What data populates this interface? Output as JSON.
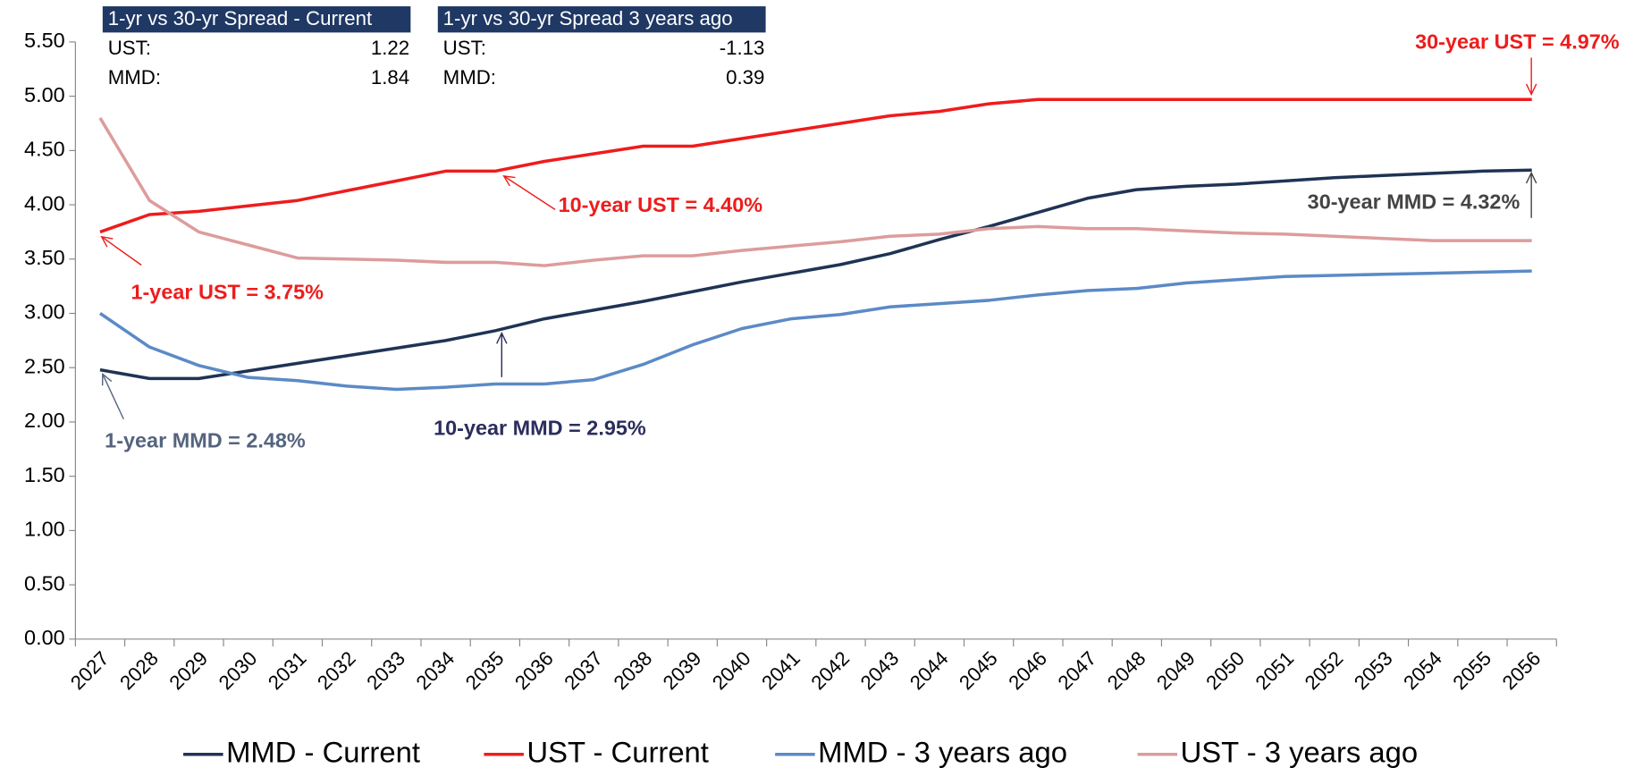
{
  "chart_data": {
    "type": "line",
    "categories": [
      "2027",
      "2028",
      "2029",
      "2030",
      "2031",
      "2032",
      "2033",
      "2034",
      "2035",
      "2036",
      "2037",
      "2038",
      "2039",
      "2040",
      "2041",
      "2042",
      "2043",
      "2044",
      "2045",
      "2046",
      "2047",
      "2048",
      "2049",
      "2050",
      "2051",
      "2052",
      "2053",
      "2054",
      "2055",
      "2056"
    ],
    "series": [
      {
        "name": "MMD - Current",
        "color": "#1f3354",
        "values": [
          2.48,
          2.4,
          2.4,
          2.47,
          2.54,
          2.61,
          2.68,
          2.75,
          2.84,
          2.95,
          3.03,
          3.11,
          3.2,
          3.29,
          3.37,
          3.45,
          3.55,
          3.68,
          3.8,
          3.93,
          4.06,
          4.14,
          4.17,
          4.19,
          4.22,
          4.25,
          4.27,
          4.29,
          4.31,
          4.32
        ]
      },
      {
        "name": "UST - Current",
        "color": "#ee1c1c",
        "values": [
          3.75,
          3.91,
          3.94,
          3.99,
          4.04,
          4.13,
          4.22,
          4.31,
          4.31,
          4.4,
          4.47,
          4.54,
          4.54,
          4.61,
          4.68,
          4.75,
          4.82,
          4.86,
          4.93,
          4.97,
          4.97,
          4.97,
          4.97,
          4.97,
          4.97,
          4.97,
          4.97,
          4.97,
          4.97,
          4.97
        ]
      },
      {
        "name": "MMD - 3 years ago",
        "color": "#5b8ac6",
        "values": [
          3.0,
          2.69,
          2.52,
          2.41,
          2.38,
          2.33,
          2.3,
          2.32,
          2.35,
          2.35,
          2.39,
          2.53,
          2.71,
          2.86,
          2.95,
          2.99,
          3.06,
          3.09,
          3.12,
          3.17,
          3.21,
          3.23,
          3.28,
          3.31,
          3.34,
          3.35,
          3.36,
          3.37,
          3.38,
          3.39
        ]
      },
      {
        "name": "UST - 3 years ago",
        "color": "#dd9c9c",
        "values": [
          4.8,
          4.04,
          3.75,
          3.63,
          3.51,
          3.5,
          3.49,
          3.47,
          3.47,
          3.44,
          3.49,
          3.53,
          3.53,
          3.58,
          3.62,
          3.66,
          3.71,
          3.73,
          3.78,
          3.8,
          3.78,
          3.78,
          3.76,
          3.74,
          3.73,
          3.71,
          3.69,
          3.67,
          3.67,
          3.67
        ]
      }
    ],
    "ylim": [
      0,
      5.5
    ],
    "yticks": [
      {
        "value": 0,
        "label": "0.00"
      },
      {
        "value": 0.5,
        "label": "0.50"
      },
      {
        "value": 1,
        "label": "1.00"
      },
      {
        "value": 1.5,
        "label": "1.50"
      },
      {
        "value": 2,
        "label": "2.00"
      },
      {
        "value": 2.5,
        "label": "2.50"
      },
      {
        "value": 3,
        "label": "3.00"
      },
      {
        "value": 3.5,
        "label": "3.50"
      },
      {
        "value": 4,
        "label": "4.00"
      },
      {
        "value": 4.5,
        "label": "4.50"
      },
      {
        "value": 5,
        "label": "5.00"
      },
      {
        "value": 5.5,
        "label": "5.50"
      }
    ],
    "legend": "bottom",
    "annotations": [
      {
        "text": "30-year UST = 4.97%",
        "color": "#ee1c1c"
      },
      {
        "text": "10-year UST = 4.40%",
        "color": "#ee1c1c"
      },
      {
        "text": "1-year UST = 3.75%",
        "color": "#ee1c1c"
      },
      {
        "text": "1-year MMD = 2.48%",
        "color": "#55647e"
      },
      {
        "text": "10-year MMD = 2.95%",
        "color": "#2b2d5c"
      },
      {
        "text": "30-year MMD = 4.32%",
        "color": "#444444"
      }
    ],
    "spread_tables": [
      {
        "title": "1-yr vs 30-yr Spread - Current",
        "rows": [
          {
            "label": "UST:",
            "value": 1.22
          },
          {
            "label": "MMD:",
            "value": 1.84
          }
        ]
      },
      {
        "title": "1-yr vs 30-yr Spread 3 years ago",
        "rows": [
          {
            "label": "UST:",
            "value": -1.13
          },
          {
            "label": "MMD:",
            "value": 0.39
          }
        ]
      }
    ]
  }
}
